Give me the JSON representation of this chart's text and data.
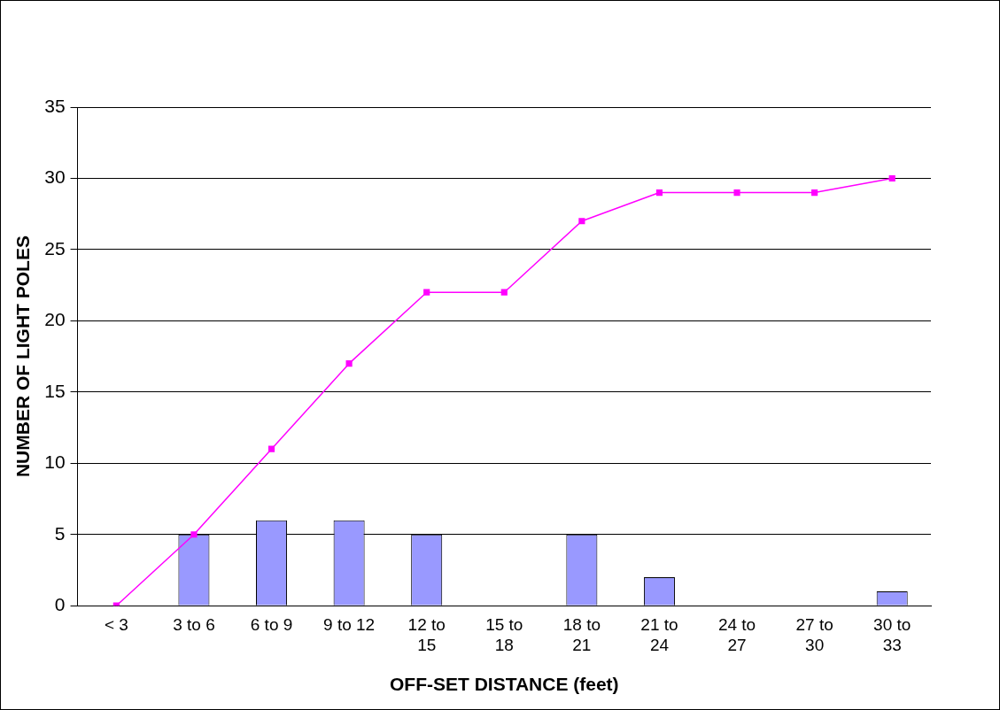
{
  "chart_data": {
    "type": "bar",
    "xlabel": "OFF-SET DISTANCE (feet)",
    "ylabel": "NUMBER OF LIGHT POLES",
    "categories": [
      "< 3",
      "3 to 6",
      "6 to 9",
      "9 to 12",
      "12 to 15",
      "15 to 18",
      "18 to 21",
      "21 to 24",
      "24 to 27",
      "27 to 30",
      "30 to 33"
    ],
    "series": [
      {
        "color": "#9999ff",
        "values": [
          null,
          5,
          6,
          6,
          5,
          0,
          5,
          2,
          0,
          0,
          1
        ]
      },
      {
        "type": "line",
        "color": "#ff00ff",
        "marker": "square",
        "values": [
          0,
          5,
          11,
          17,
          22,
          22,
          27,
          29,
          29,
          29,
          30
        ]
      }
    ],
    "ylim": [
      0,
      35
    ],
    "yticks": [
      0,
      5,
      10,
      15,
      20,
      25,
      30,
      35
    ],
    "grid": "y",
    "legend": false
  }
}
